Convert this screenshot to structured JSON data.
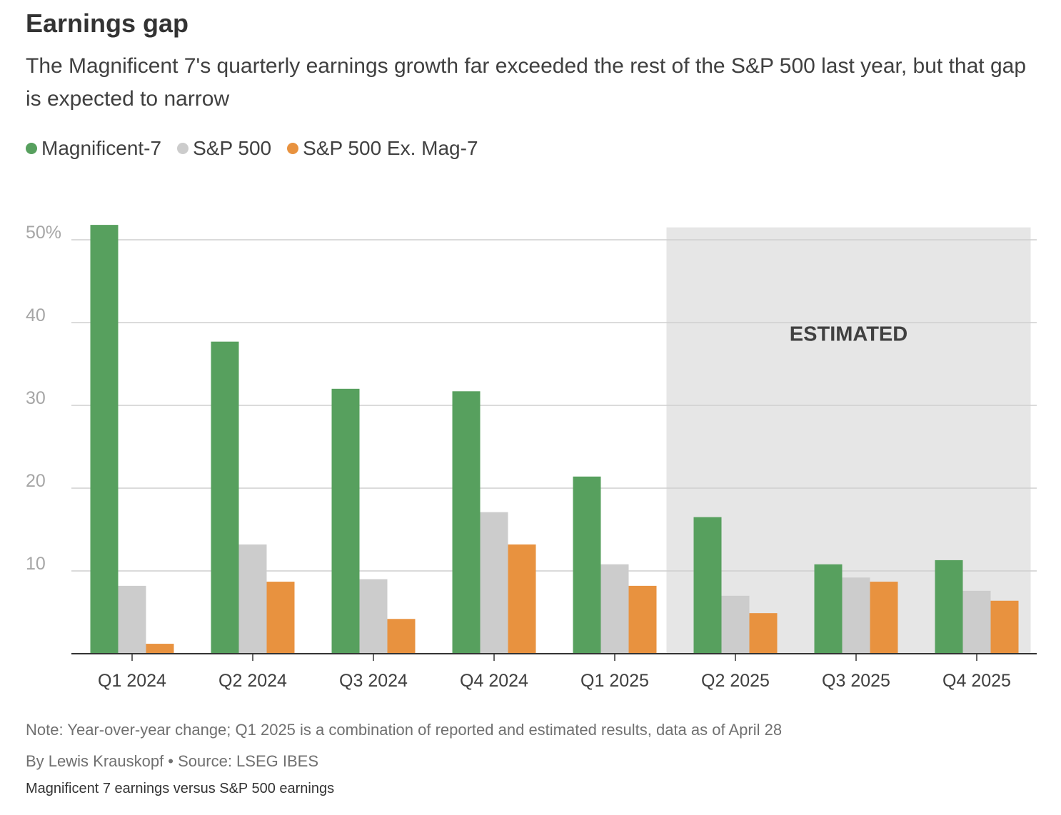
{
  "header": {
    "title": "Earnings gap",
    "subtitle": "The Magnificent 7's quarterly earnings growth far exceeded the rest of the S&P 500 last year, but that gap is expected to narrow"
  },
  "legend": [
    {
      "label": "Magnificent-7",
      "color": "#57a05e"
    },
    {
      "label": "S&P 500",
      "color": "#cccccc"
    },
    {
      "label": "S&P 500 Ex. Mag-7",
      "color": "#e8923f"
    }
  ],
  "chart_data": {
    "type": "bar",
    "categories": [
      "Q1 2024",
      "Q2 2024",
      "Q3 2024",
      "Q4 2024",
      "Q1 2025",
      "Q2 2025",
      "Q3 2025",
      "Q4 2025"
    ],
    "series": [
      {
        "name": "Magnificent-7",
        "color": "#57a05e",
        "values": [
          51.8,
          37.7,
          32.0,
          31.7,
          21.4,
          16.5,
          10.8,
          11.3
        ]
      },
      {
        "name": "S&P 500",
        "color": "#cccccc",
        "values": [
          8.2,
          13.2,
          9.0,
          17.1,
          10.8,
          7.0,
          9.2,
          7.6
        ]
      },
      {
        "name": "S&P 500 Ex. Mag-7",
        "color": "#e8923f",
        "values": [
          1.2,
          8.7,
          4.2,
          13.2,
          8.2,
          4.9,
          8.7,
          6.4
        ]
      }
    ],
    "ylim": [
      0,
      51.5
    ],
    "yticks": [
      10,
      20,
      30,
      40,
      50
    ],
    "ytick_labels": [
      "10",
      "20",
      "30",
      "40",
      "50%"
    ],
    "grid": true,
    "legend_position": "top-left",
    "annotation": {
      "label": "ESTIMATED",
      "from_category": "Q2 2025",
      "to_category": "Q4 2025",
      "shade_color": "#e6e6e6"
    }
  },
  "footer": {
    "note": "Note: Year-over-year change; Q1 2025 is a combination of reported and estimated results, data as of April 28",
    "byline": "By Lewis Krauskopf • Source: LSEG IBES",
    "caption": "Magnificent 7 earnings versus S&P 500 earnings"
  }
}
